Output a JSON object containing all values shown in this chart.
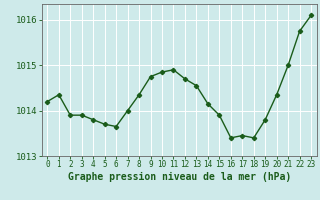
{
  "x": [
    0,
    1,
    2,
    3,
    4,
    5,
    6,
    7,
    8,
    9,
    10,
    11,
    12,
    13,
    14,
    15,
    16,
    17,
    18,
    19,
    20,
    21,
    22,
    23
  ],
  "y": [
    1014.2,
    1014.35,
    1013.9,
    1013.9,
    1013.8,
    1013.7,
    1013.65,
    1014.0,
    1014.35,
    1014.75,
    1014.85,
    1014.9,
    1014.7,
    1014.55,
    1014.15,
    1013.9,
    1013.4,
    1013.45,
    1013.4,
    1013.8,
    1014.35,
    1015.0,
    1015.75,
    1016.1
  ],
  "line_color": "#1a5c1a",
  "marker": "D",
  "marker_size": 2.2,
  "linewidth": 1.0,
  "bg_color": "#ceeaea",
  "grid_color": "#b0d8d8",
  "xlabel": "Graphe pression niveau de la mer (hPa)",
  "xlabel_color": "#1a5c1a",
  "xlabel_fontsize": 7.0,
  "ylabel_color": "#1a5c1a",
  "ytick_fontsize": 6.5,
  "xtick_fontsize": 5.5,
  "ylim": [
    1013.0,
    1016.35
  ],
  "yticks": [
    1013,
    1014,
    1015,
    1016
  ],
  "xlim": [
    -0.5,
    23.5
  ],
  "xticks": [
    0,
    1,
    2,
    3,
    4,
    5,
    6,
    7,
    8,
    9,
    10,
    11,
    12,
    13,
    14,
    15,
    16,
    17,
    18,
    19,
    20,
    21,
    22,
    23
  ]
}
